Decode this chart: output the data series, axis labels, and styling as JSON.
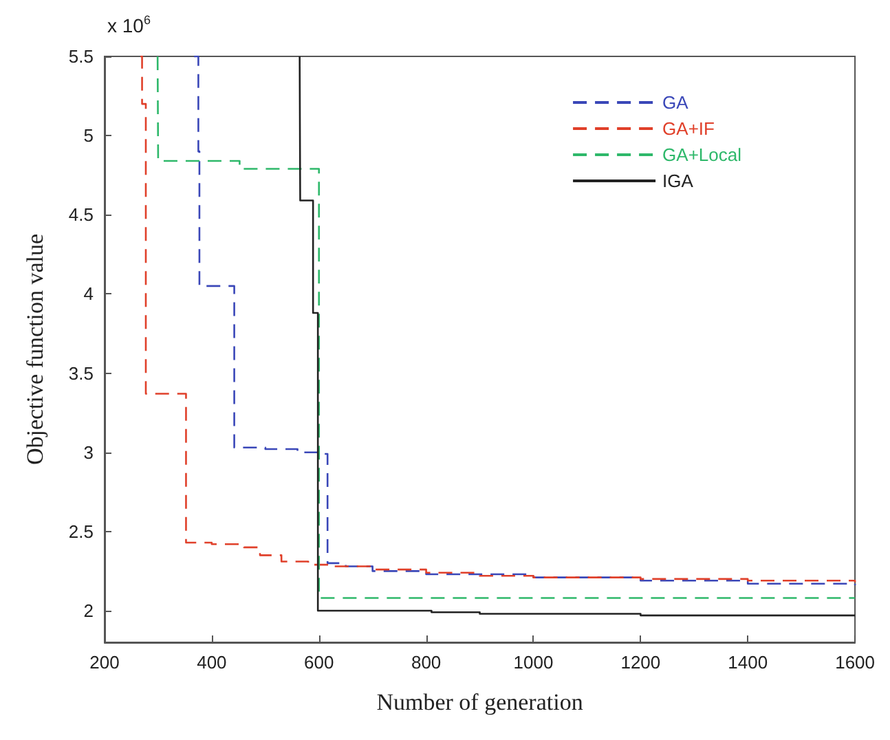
{
  "chart_data": {
    "type": "step",
    "xlabel": "Number of generation",
    "ylabel": "Objective function value",
    "annotations": [
      "x 10$^{6}$"
    ],
    "xlim": [
      200,
      1600
    ],
    "xticks": [
      200,
      400,
      600,
      800,
      1000,
      1200,
      1400,
      1600
    ],
    "ylim": [
      1.8,
      5.5
    ],
    "yticks": [
      2,
      2.5,
      3,
      3.5,
      4,
      4.5,
      5,
      5.5
    ],
    "grid": false,
    "legend": "top right",
    "series": [
      {
        "name": "GA",
        "color": "#3a47b8",
        "line_style": "dashed",
        "x": [
          367,
          375,
          377,
          442,
          500,
          560,
          600,
          616,
          650,
          700,
          800,
          1000,
          1200,
          1400,
          1600
        ],
        "values": [
          5.5,
          4.9,
          4.05,
          3.03,
          3.02,
          3.0,
          2.99,
          2.3,
          2.28,
          2.25,
          2.23,
          2.21,
          2.19,
          2.17,
          2.16
        ]
      },
      {
        "name": "GA+IF",
        "color": "#e0402a",
        "line_style": "dashed",
        "x": [
          267,
          270,
          277,
          352,
          400,
          460,
          490,
          530,
          580,
          620,
          700,
          800,
          900,
          1000,
          1200,
          1400,
          1600
        ],
        "values": [
          5.5,
          5.2,
          3.37,
          2.43,
          2.42,
          2.4,
          2.35,
          2.31,
          2.29,
          2.28,
          2.26,
          2.24,
          2.22,
          2.21,
          2.2,
          2.19,
          2.18
        ]
      },
      {
        "name": "GA+Local",
        "color": "#2eb86a",
        "line_style": "dashed",
        "x": [
          299,
          300,
          452,
          600,
          1600
        ],
        "values": [
          5.5,
          4.84,
          4.79,
          2.08,
          2.08
        ]
      },
      {
        "name": "IGA",
        "color": "#222222",
        "line_style": "solid",
        "x": [
          564,
          565,
          589,
          598,
          810,
          900,
          1200,
          1600
        ],
        "values": [
          5.5,
          4.59,
          3.88,
          2.0,
          1.99,
          1.98,
          1.97,
          1.97
        ]
      }
    ]
  }
}
